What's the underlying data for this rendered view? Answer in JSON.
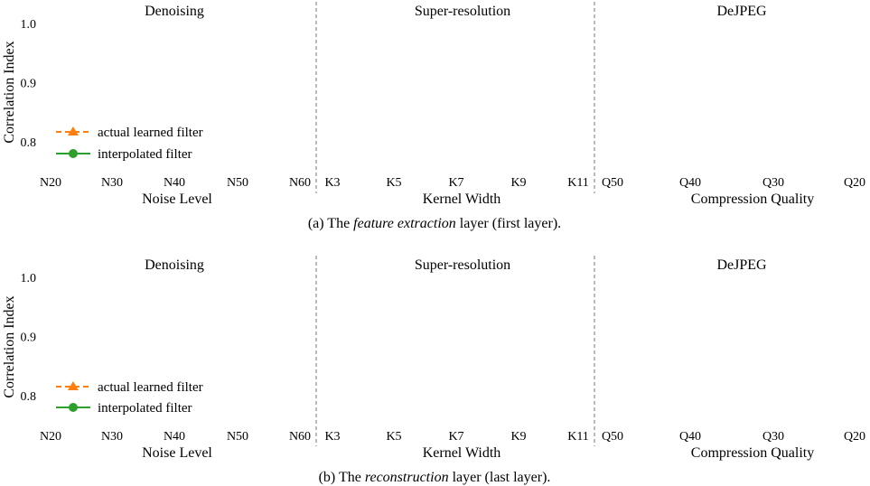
{
  "chart_data": [
    {
      "type": "line",
      "caption": {
        "before": "(a) The ",
        "emphasis": "feature extraction",
        "after": " layer (first layer)."
      },
      "ylabel": "Correlation Index",
      "ylim": [
        0.75,
        1.0
      ],
      "yticks": [
        "1.0",
        "0.9",
        "0.8"
      ],
      "grid": false,
      "legend": {
        "placement": "lower-left",
        "entries": [
          {
            "label": "actual learned filter",
            "color": "#ff7f0e",
            "marker": "triangle",
            "linestyle": "dashed"
          },
          {
            "label": "interpolated filter",
            "color": "#2ca02c",
            "marker": "circle",
            "linestyle": "solid"
          }
        ]
      },
      "panels": [
        {
          "title": "Denoising",
          "xlabel": "Noise Level",
          "categories": [
            "N20",
            "N30",
            "N40",
            "N50",
            "N60"
          ]
        },
        {
          "title": "Super-resolution",
          "xlabel": "Kernel Width",
          "categories": [
            "K3",
            "K5",
            "K7",
            "K9",
            "K11"
          ]
        },
        {
          "title": "DeJPEG",
          "xlabel": "Compression Quality",
          "categories": [
            "Q50",
            "Q40",
            "Q30",
            "Q20"
          ]
        }
      ]
    },
    {
      "type": "line",
      "caption": {
        "before": "(b) The ",
        "emphasis": "reconstruction",
        "after": " layer (last layer)."
      },
      "ylabel": "Correlation Index",
      "ylim": [
        0.75,
        1.0
      ],
      "yticks": [
        "1.0",
        "0.9",
        "0.8"
      ],
      "grid": false,
      "legend": {
        "placement": "lower-left",
        "entries": [
          {
            "label": "actual learned filter",
            "color": "#ff7f0e",
            "marker": "triangle",
            "linestyle": "dashed"
          },
          {
            "label": "interpolated filter",
            "color": "#2ca02c",
            "marker": "circle",
            "linestyle": "solid"
          }
        ]
      },
      "panels": [
        {
          "title": "Denoising",
          "xlabel": "Noise Level",
          "categories": [
            "N20",
            "N30",
            "N40",
            "N50",
            "N60"
          ]
        },
        {
          "title": "Super-resolution",
          "xlabel": "Kernel Width",
          "categories": [
            "K3",
            "K5",
            "K7",
            "K9",
            "K11"
          ]
        },
        {
          "title": "DeJPEG",
          "xlabel": "Compression Quality",
          "categories": [
            "Q50",
            "Q40",
            "Q30",
            "Q20"
          ]
        }
      ]
    }
  ]
}
